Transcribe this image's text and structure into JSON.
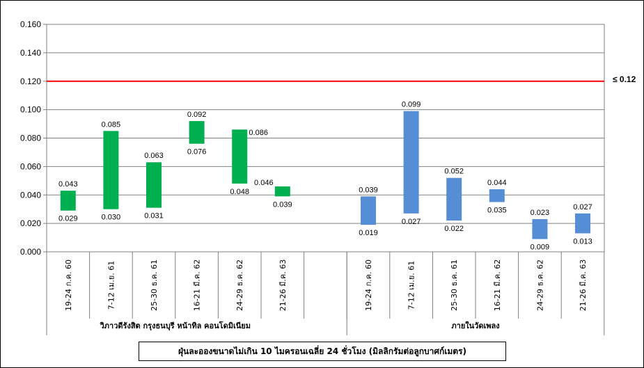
{
  "chart_data": {
    "type": "bar",
    "subtype": "floating-range",
    "title": "",
    "caption": "ฝุ่นละอองขนาดไม่เกิน 10 ไมครอนเฉลี่ย 24 ชั่วโมง (มิลลิกรัมต่อลูกบาศก์เมตร)",
    "ylim": [
      0,
      0.16
    ],
    "yticks": [
      "0.000",
      "0.020",
      "0.040",
      "0.060",
      "0.080",
      "0.100",
      "0.120",
      "0.140",
      "0.160"
    ],
    "grid": true,
    "limit_line": {
      "value": 0.12,
      "label": "≤ 0.12",
      "color": "#ff0000"
    },
    "groups": [
      {
        "name": "วิภาวดีรังสิต กรุงธนบุรี หน้าทิล คอนโดมิเนียม",
        "color": "#00b050",
        "categories": [
          "19-24 ก.ค. 60",
          "7-12 เม.ย. 61",
          "25-30 ธ.ค. 61",
          "16-21 มี.ค. 62",
          "24-29 ธ.ค. 62",
          "21-26 มี.ค. 63"
        ],
        "low": [
          0.029,
          0.03,
          0.031,
          0.076,
          0.048,
          0.039
        ],
        "high": [
          0.043,
          0.085,
          0.063,
          0.092,
          0.086,
          0.046
        ],
        "low_labels": [
          "0.029",
          "0.030",
          "0.031",
          "0.076",
          "0.048",
          "0.039"
        ],
        "high_labels": [
          "0.043",
          "0.085",
          "0.063",
          "0.092",
          "0.086",
          "0.046"
        ]
      },
      {
        "name": "ภายในวัดเพลง",
        "color": "#558ed5",
        "categories": [
          "19-24 ก.ค. 60",
          "7-12 เม.ย. 61",
          "25-30 ธ.ค. 61",
          "16-21 มี.ค. 62",
          "24-29 ธ.ค. 62",
          "21-26 มี.ค. 63"
        ],
        "low": [
          0.019,
          0.027,
          0.022,
          0.035,
          0.009,
          0.013
        ],
        "high": [
          0.039,
          0.099,
          0.052,
          0.044,
          0.023,
          0.027
        ],
        "low_labels": [
          "0.019",
          "0.027",
          "0.022",
          "0.035",
          "0.009",
          "0.013"
        ],
        "high_labels": [
          "0.039",
          "0.099",
          "0.052",
          "0.044",
          "0.023",
          "0.027"
        ]
      }
    ]
  }
}
